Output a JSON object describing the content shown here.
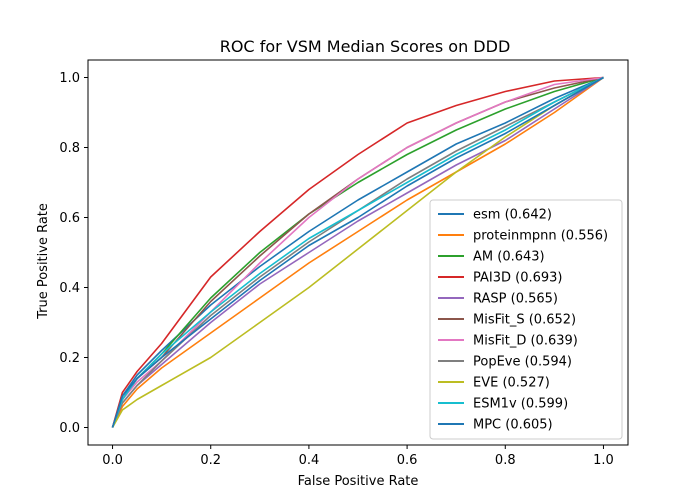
{
  "chart_data": {
    "type": "line",
    "title": "ROC for VSM Median Scores on DDD",
    "xlabel": "False Positive Rate",
    "ylabel": "True Positive Rate",
    "xlim": [
      -0.05,
      1.05
    ],
    "ylim": [
      -0.05,
      1.05
    ],
    "x_ticks": [
      "0.0",
      "0.2",
      "0.4",
      "0.6",
      "0.8",
      "1.0"
    ],
    "y_ticks": [
      "0.0",
      "0.2",
      "0.4",
      "0.6",
      "0.8",
      "1.0"
    ],
    "grid": false,
    "legend_position": "lower-right",
    "series": [
      {
        "name": "esm (0.642)",
        "color": "#1f77b4",
        "x": [
          0,
          0.02,
          0.05,
          0.1,
          0.2,
          0.3,
          0.4,
          0.5,
          0.6,
          0.7,
          0.8,
          0.9,
          1.0
        ],
        "y": [
          0,
          0.09,
          0.15,
          0.22,
          0.35,
          0.46,
          0.56,
          0.65,
          0.73,
          0.81,
          0.87,
          0.94,
          1.0
        ]
      },
      {
        "name": "proteinmpnn (0.556)",
        "color": "#ff7f0e",
        "x": [
          0,
          0.02,
          0.05,
          0.1,
          0.2,
          0.3,
          0.4,
          0.5,
          0.6,
          0.7,
          0.8,
          0.9,
          1.0
        ],
        "y": [
          0,
          0.06,
          0.11,
          0.17,
          0.27,
          0.37,
          0.47,
          0.56,
          0.65,
          0.73,
          0.81,
          0.9,
          1.0
        ]
      },
      {
        "name": "AM (0.643)",
        "color": "#2ca02c",
        "x": [
          0,
          0.02,
          0.05,
          0.1,
          0.2,
          0.3,
          0.4,
          0.5,
          0.6,
          0.7,
          0.8,
          0.9,
          1.0
        ],
        "y": [
          0,
          0.08,
          0.14,
          0.21,
          0.37,
          0.5,
          0.61,
          0.7,
          0.78,
          0.85,
          0.91,
          0.96,
          1.0
        ]
      },
      {
        "name": "PAI3D (0.693)",
        "color": "#d62728",
        "x": [
          0,
          0.02,
          0.05,
          0.1,
          0.2,
          0.3,
          0.4,
          0.5,
          0.6,
          0.7,
          0.8,
          0.9,
          1.0
        ],
        "y": [
          0,
          0.1,
          0.16,
          0.24,
          0.43,
          0.56,
          0.68,
          0.78,
          0.87,
          0.92,
          0.96,
          0.99,
          1.0
        ]
      },
      {
        "name": "RASP (0.565)",
        "color": "#9467bd",
        "x": [
          0,
          0.02,
          0.05,
          0.1,
          0.2,
          0.3,
          0.4,
          0.5,
          0.6,
          0.7,
          0.8,
          0.9,
          1.0
        ],
        "y": [
          0,
          0.07,
          0.12,
          0.18,
          0.3,
          0.41,
          0.5,
          0.59,
          0.67,
          0.75,
          0.82,
          0.91,
          1.0
        ]
      },
      {
        "name": "MisFit_S (0.652)",
        "color": "#8c564b",
        "x": [
          0,
          0.02,
          0.05,
          0.1,
          0.2,
          0.3,
          0.4,
          0.5,
          0.6,
          0.7,
          0.8,
          0.9,
          1.0
        ],
        "y": [
          0,
          0.08,
          0.14,
          0.2,
          0.36,
          0.49,
          0.61,
          0.71,
          0.8,
          0.87,
          0.93,
          0.97,
          1.0
        ]
      },
      {
        "name": "MisFit_D (0.639)",
        "color": "#e377c2",
        "x": [
          0,
          0.02,
          0.05,
          0.1,
          0.2,
          0.3,
          0.4,
          0.5,
          0.6,
          0.7,
          0.8,
          0.9,
          1.0
        ],
        "y": [
          0,
          0.08,
          0.13,
          0.19,
          0.33,
          0.47,
          0.6,
          0.71,
          0.8,
          0.87,
          0.93,
          0.98,
          1.0
        ]
      },
      {
        "name": "PopEve (0.594)",
        "color": "#7f7f7f",
        "x": [
          0,
          0.02,
          0.05,
          0.1,
          0.2,
          0.3,
          0.4,
          0.5,
          0.6,
          0.7,
          0.8,
          0.9,
          1.0
        ],
        "y": [
          0,
          0.07,
          0.12,
          0.19,
          0.32,
          0.43,
          0.53,
          0.62,
          0.71,
          0.79,
          0.86,
          0.93,
          1.0
        ]
      },
      {
        "name": "EVE (0.527)",
        "color": "#bcbd22",
        "x": [
          0,
          0.02,
          0.05,
          0.1,
          0.2,
          0.3,
          0.4,
          0.5,
          0.6,
          0.7,
          0.8,
          0.9,
          1.0
        ],
        "y": [
          0,
          0.05,
          0.08,
          0.12,
          0.2,
          0.3,
          0.4,
          0.51,
          0.62,
          0.73,
          0.83,
          0.92,
          1.0
        ]
      },
      {
        "name": "ESM1v (0.599)",
        "color": "#17becf",
        "x": [
          0,
          0.02,
          0.05,
          0.1,
          0.2,
          0.3,
          0.4,
          0.5,
          0.6,
          0.7,
          0.8,
          0.9,
          1.0
        ],
        "y": [
          0,
          0.08,
          0.14,
          0.21,
          0.33,
          0.44,
          0.54,
          0.62,
          0.7,
          0.78,
          0.85,
          0.93,
          1.0
        ]
      },
      {
        "name": "MPC (0.605)",
        "color": "#1f77b4",
        "x": [
          0,
          0.02,
          0.05,
          0.1,
          0.2,
          0.3,
          0.4,
          0.5,
          0.6,
          0.7,
          0.8,
          0.9,
          1.0
        ],
        "y": [
          0,
          0.09,
          0.14,
          0.2,
          0.31,
          0.42,
          0.52,
          0.6,
          0.69,
          0.77,
          0.84,
          0.92,
          1.0
        ]
      }
    ]
  }
}
